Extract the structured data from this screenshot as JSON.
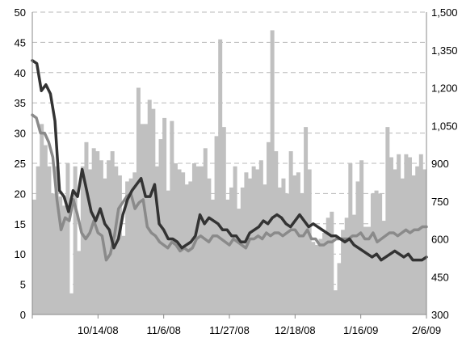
{
  "chart_data": {
    "type": "bar",
    "title": "",
    "x_ticks": [
      "10/14/08",
      "11/6/08",
      "11/27/08",
      "12/18/08",
      "1/16/09",
      "2/6/09"
    ],
    "y_left": {
      "min": 0,
      "max": 50,
      "step": 5
    },
    "y_right": {
      "min": 300,
      "max": 1500,
      "step": 150,
      "tick_labels": [
        "300",
        "450",
        "600",
        "750",
        "900",
        "1,050",
        "1,200",
        "1,350",
        "1,500"
      ]
    },
    "grid": "horizontal dashed, left axis",
    "legend": "none",
    "series": [
      {
        "type": "bar",
        "axis": "left",
        "color": "#c0c0c0",
        "values": [
          19.0,
          24.5,
          31.5,
          28.0,
          24.5,
          20.0,
          24.5,
          19.5,
          18.0,
          25.0,
          3.5,
          24.5,
          10.5,
          24.5,
          28.5,
          24.0,
          27.5,
          27.0,
          25.5,
          22.5,
          25.5,
          27.0,
          24.5,
          23.0,
          13.0,
          22.0,
          22.5,
          23.5,
          37.5,
          31.5,
          31.5,
          35.5,
          34.0,
          24.5,
          29.0,
          32.5,
          20.5,
          32.0,
          25.0,
          24.0,
          23.5,
          21.5,
          22.0,
          25.0,
          24.5,
          24.5,
          27.5,
          22.5,
          19.0,
          29.5,
          45.5,
          31.0,
          19.0,
          21.0,
          24.5,
          17.5,
          21.0,
          23.5,
          22.5,
          24.5,
          24.0,
          25.5,
          21.5,
          28.5,
          47.0,
          27.0,
          21.0,
          22.5,
          20.0,
          27.0,
          23.0,
          23.5,
          20.0,
          31.0,
          24.0,
          12.0,
          11.5,
          12.5,
          13.5,
          16.0,
          17.0,
          4.0,
          8.5,
          14.0,
          16.0,
          25.0,
          16.5,
          22.0,
          25.5,
          14.5,
          14.5,
          20.0,
          20.5,
          20.0,
          15.5,
          31.0,
          26.0,
          24.0,
          26.5,
          22.5,
          26.5,
          26.0,
          23.0,
          24.5,
          26.5,
          24.0
        ]
      },
      {
        "type": "line",
        "axis": "left",
        "color": "#8a8a8a",
        "values": [
          33.0,
          32.5,
          30.0,
          30.0,
          28.5,
          26.0,
          19.0,
          14.0,
          16.0,
          15.5,
          19.0,
          16.5,
          13.5,
          12.5,
          13.5,
          15.5,
          13.5,
          13.0,
          9.0,
          10.0,
          13.0,
          17.5,
          18.5,
          19.5,
          20.0,
          17.5,
          18.5,
          19.0,
          14.5,
          13.5,
          13.0,
          12.0,
          11.5,
          11.0,
          12.0,
          11.5,
          10.5,
          11.0,
          10.5,
          11.0,
          12.5,
          13.0,
          12.5,
          12.0,
          13.0,
          13.0,
          12.5,
          12.0,
          11.5,
          12.5,
          12.0,
          11.5,
          11.0,
          12.5,
          12.5,
          13.0,
          12.5,
          13.5,
          13.0,
          13.5,
          13.5,
          13.0,
          13.5,
          14.0,
          14.0,
          13.0,
          13.0,
          14.0,
          12.5,
          12.5,
          11.5,
          11.5,
          12.0,
          12.0,
          12.5,
          12.5,
          12.5,
          12.5,
          13.0,
          13.0,
          13.5,
          12.5,
          12.5,
          13.5,
          12.0,
          12.5,
          13.0,
          13.5,
          13.5,
          13.0,
          13.5,
          14.0,
          13.5,
          14.0,
          14.0,
          14.5,
          14.5
        ]
      },
      {
        "type": "line",
        "axis": "left",
        "color": "#333333",
        "values": [
          42.0,
          41.5,
          37.0,
          38.0,
          36.5,
          32.0,
          20.5,
          19.5,
          17.0,
          20.5,
          19.5,
          24.0,
          20.5,
          17.0,
          15.5,
          17.5,
          15.0,
          14.0,
          11.0,
          12.5,
          16.5,
          19.0,
          20.5,
          21.5,
          22.5,
          19.5,
          19.5,
          21.5,
          15.0,
          14.0,
          12.5,
          12.5,
          12.0,
          11.0,
          11.5,
          12.0,
          13.0,
          16.5,
          15.0,
          16.0,
          15.5,
          15.0,
          14.0,
          14.0,
          13.0,
          13.0,
          12.0,
          12.0,
          13.5,
          14.0,
          14.5,
          15.5,
          15.0,
          16.0,
          16.5,
          16.0,
          15.0,
          14.5,
          15.5,
          16.5,
          15.5,
          14.5,
          15.0,
          14.5,
          14.0,
          13.5,
          13.0,
          13.0,
          12.5,
          12.0,
          12.5,
          11.5,
          11.0,
          10.5,
          10.0,
          9.5,
          10.0,
          9.0,
          9.5,
          10.0,
          10.5,
          10.0,
          9.5,
          10.0,
          9.0,
          9.0,
          9.0,
          9.5
        ]
      }
    ]
  }
}
